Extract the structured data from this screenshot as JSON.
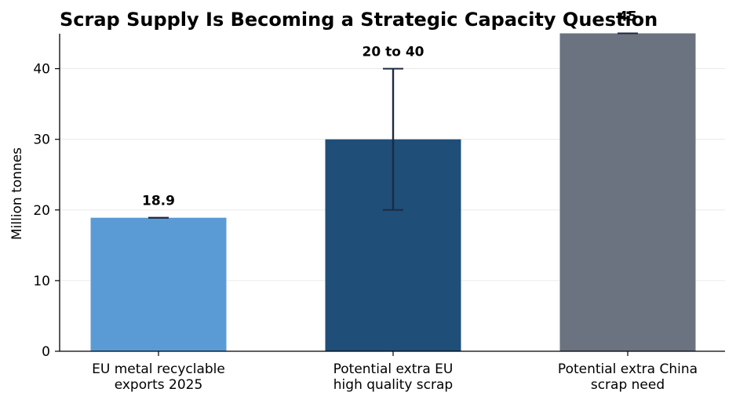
{
  "chart_data": {
    "type": "bar",
    "title": "Scrap Supply Is Becoming a Strategic Capacity Question",
    "xlabel": "",
    "ylabel": "Million tonnes",
    "ylim": [
      0,
      47.5
    ],
    "yticks": [
      0,
      10,
      20,
      30,
      40
    ],
    "ytick_labels": [
      "0",
      "10",
      "20",
      "30",
      "40"
    ],
    "grid": "horizontal",
    "categories": [
      [
        "EU metal recyclable",
        "exports 2025"
      ],
      [
        "Potential extra EU",
        "high quality scrap"
      ],
      [
        "Potential extra China",
        "scrap need"
      ]
    ],
    "values": [
      18.9,
      30,
      45
    ],
    "error_low": [
      18.9,
      20,
      45
    ],
    "error_high": [
      18.9,
      40,
      45
    ],
    "data_labels": [
      "18.9",
      "20 to 40",
      "45"
    ],
    "colors": [
      "#5b9bd5",
      "#1f4e79",
      "#6b7280"
    ],
    "error_color": "#1f2a40"
  }
}
